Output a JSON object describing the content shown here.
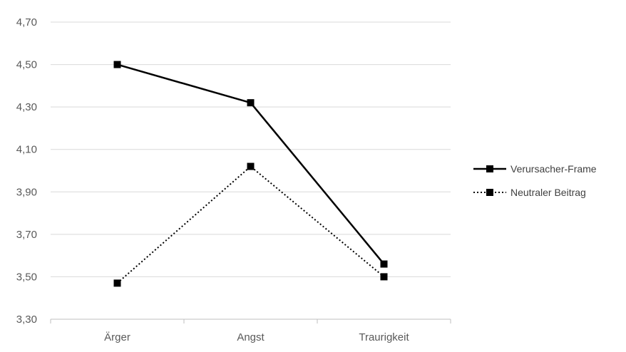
{
  "chart_data": {
    "type": "line",
    "categories": [
      "Ärger",
      "Angst",
      "Traurigkeit"
    ],
    "series": [
      {
        "name": "Verursacher-Frame",
        "values": [
          4.5,
          4.32,
          3.56
        ],
        "line_style": "solid",
        "marker": "square",
        "color": "#000000"
      },
      {
        "name": "Neutraler Beitrag",
        "values": [
          3.47,
          4.02,
          3.5
        ],
        "line_style": "dotted",
        "marker": "square",
        "color": "#000000"
      }
    ],
    "ylim": [
      3.3,
      4.7
    ],
    "yticks": [
      3.3,
      3.5,
      3.7,
      3.9,
      4.1,
      4.3,
      4.5,
      4.7
    ],
    "ytick_labels": [
      "3,30",
      "3,50",
      "3,70",
      "3,90",
      "4,10",
      "4,30",
      "4,50",
      "4,70"
    ],
    "grid": "horizontal",
    "gridline_color": "#d9d9d9",
    "legend_position": "right",
    "title": "",
    "xlabel": "",
    "ylabel": ""
  }
}
